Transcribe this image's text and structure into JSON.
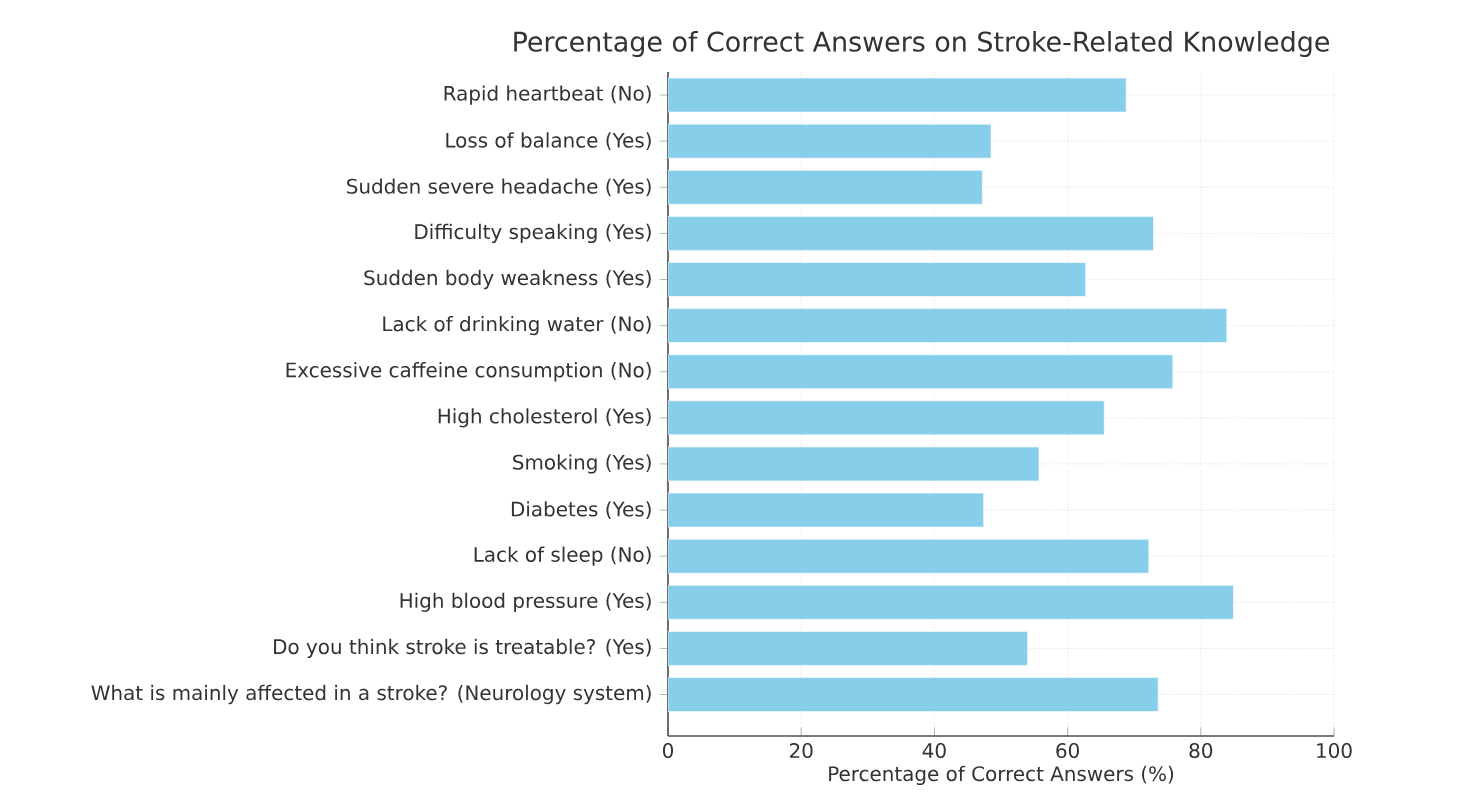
{
  "chart_data": {
    "type": "bar",
    "orientation": "horizontal",
    "title": "Percentage of Correct Answers on Stroke-Related Knowledge",
    "xlabel": "Percentage of Correct Answers (%)",
    "categories": [
      "Rapid heartbeat (No)",
      "Loss of balance (Yes)",
      "Sudden severe headache (Yes)",
      "Difficulty speaking (Yes)",
      "Sudden body weakness (Yes)",
      "Lack of drinking water (No)",
      "Excessive caffeine consumption (No)",
      "High cholesterol (Yes)",
      "Smoking (Yes)",
      "Diabetes (Yes)",
      "Lack of sleep (No)",
      "High blood pressure (Yes)",
      "Do you think stroke is treatable? (Yes)",
      "What is mainly affected in a stroke? (Neurology system)"
    ],
    "values": [
      68.8,
      48.5,
      47.2,
      72.9,
      62.7,
      83.9,
      75.8,
      65.5,
      55.7,
      47.4,
      72.2,
      84.9,
      54.0,
      73.6
    ],
    "color": "#87ceeb",
    "xlim": [
      0,
      100
    ],
    "xticks": [
      0,
      20,
      40,
      60,
      80,
      100
    ],
    "grid": true
  }
}
